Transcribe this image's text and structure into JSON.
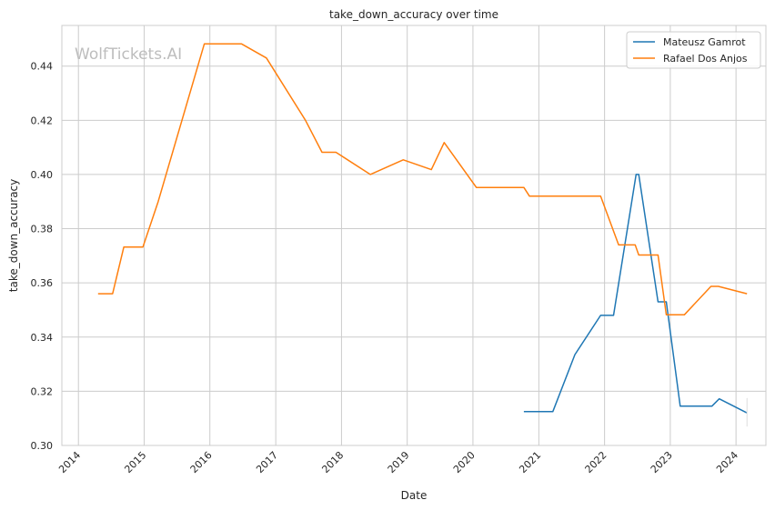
{
  "chart_data": {
    "type": "line",
    "title": "take_down_accuracy over time",
    "xlabel": "Date",
    "ylabel": "take_down_accuracy",
    "watermark": "WolfTickets.AI",
    "x_axis": "date",
    "xlim": [
      "2013-10-01",
      "2024-06-15"
    ],
    "ylim": [
      0.3,
      0.455
    ],
    "x_ticks": [
      "2014",
      "2015",
      "2016",
      "2017",
      "2018",
      "2019",
      "2020",
      "2021",
      "2022",
      "2023",
      "2024"
    ],
    "y_ticks": [
      "0.30",
      "0.32",
      "0.34",
      "0.36",
      "0.38",
      "0.40",
      "0.42",
      "0.44"
    ],
    "grid": true,
    "legend_position": "top-right",
    "series": [
      {
        "name": "Mateusz Gamrot",
        "color": "#1f77b4",
        "points": [
          [
            "2020-10-10",
            0.3125
          ],
          [
            "2021-03-20",
            0.3125
          ],
          [
            "2021-07-20",
            0.3335
          ],
          [
            "2021-12-10",
            0.348
          ],
          [
            "2022-02-20",
            0.348
          ],
          [
            "2022-06-25",
            0.4
          ],
          [
            "2022-07-10",
            0.4
          ],
          [
            "2022-10-25",
            0.353
          ],
          [
            "2022-12-10",
            0.353
          ],
          [
            "2023-02-25",
            0.3145
          ],
          [
            "2023-08-20",
            0.3145
          ],
          [
            "2023-09-30",
            0.3172
          ],
          [
            "2024-03-02",
            0.312
          ]
        ]
      },
      {
        "name": "Rafael Dos Anjos",
        "color": "#ff7f0e",
        "points": [
          [
            "2014-04-20",
            0.356
          ],
          [
            "2014-07-10",
            0.356
          ],
          [
            "2014-09-10",
            0.3732
          ],
          [
            "2014-12-25",
            0.3732
          ],
          [
            "2015-03-20",
            0.39
          ],
          [
            "2015-12-01",
            0.4482
          ],
          [
            "2016-06-25",
            0.4482
          ],
          [
            "2016-11-10",
            0.443
          ],
          [
            "2017-06-15",
            0.42
          ],
          [
            "2017-09-15",
            0.4082
          ],
          [
            "2017-12-01",
            0.4082
          ],
          [
            "2018-06-10",
            0.4
          ],
          [
            "2018-12-10",
            0.4054
          ],
          [
            "2019-05-15",
            0.4018
          ],
          [
            "2019-07-25",
            0.4118
          ],
          [
            "2020-01-20",
            0.3952
          ],
          [
            "2020-10-10",
            0.3952
          ],
          [
            "2020-11-10",
            0.392
          ],
          [
            "2021-12-10",
            0.392
          ],
          [
            "2022-03-20",
            0.374
          ],
          [
            "2022-06-20",
            0.374
          ],
          [
            "2022-07-10",
            0.3703
          ],
          [
            "2022-10-25",
            0.3703
          ],
          [
            "2022-12-10",
            0.3482
          ],
          [
            "2023-03-20",
            0.3482
          ],
          [
            "2023-08-15",
            0.3587
          ],
          [
            "2023-09-25",
            0.3587
          ],
          [
            "2024-03-02",
            0.356
          ]
        ]
      }
    ]
  }
}
